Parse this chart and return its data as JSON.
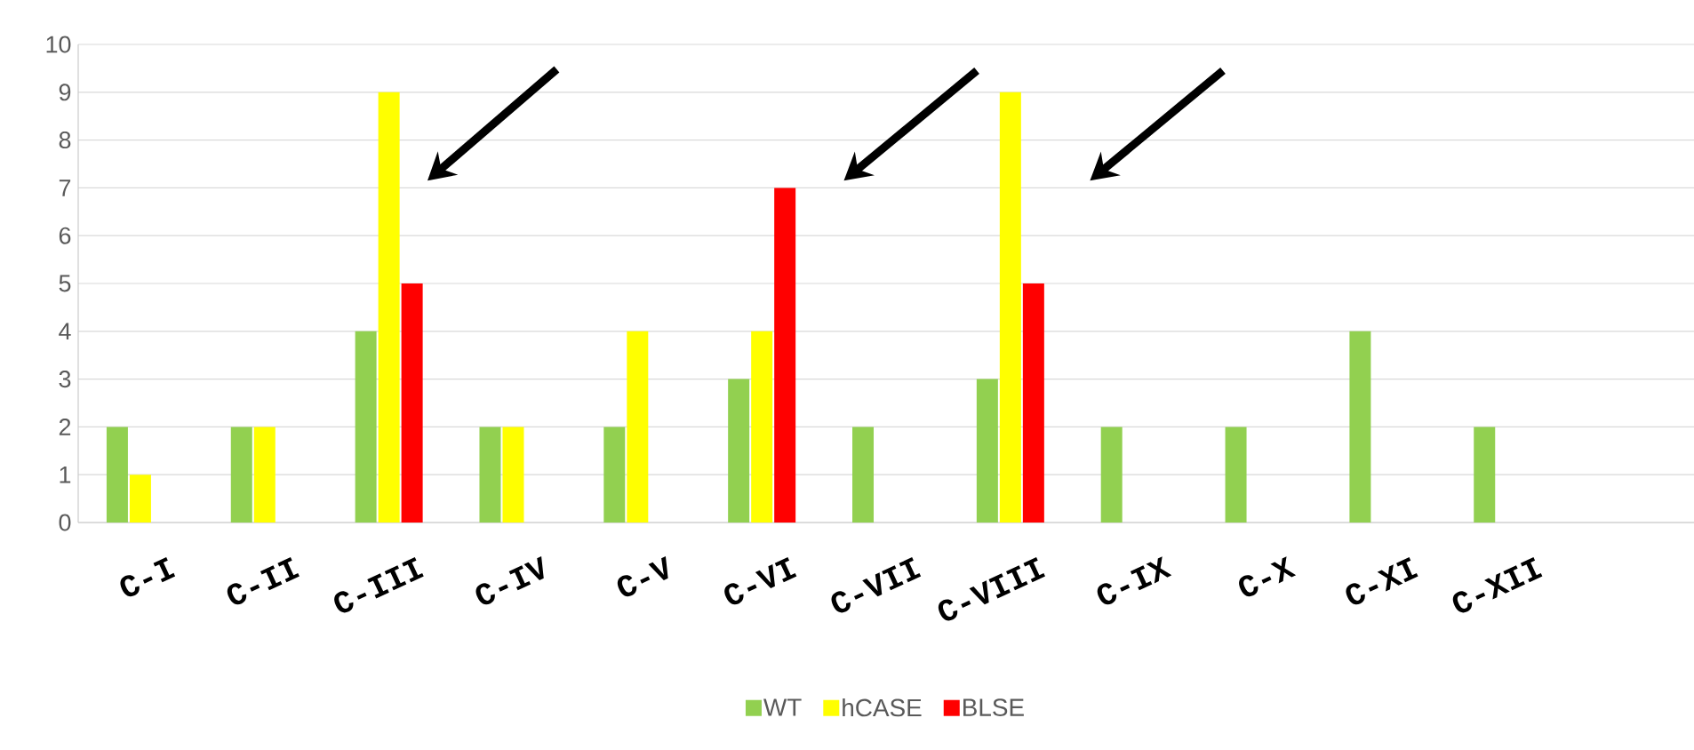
{
  "chart_data": {
    "type": "bar",
    "categories": [
      "C-I",
      "C-II",
      "C-III",
      "C-IV",
      "C-V",
      "C-VI",
      "C-VII",
      "C-VIII",
      "C-IX",
      "C-X",
      "C-XI",
      "C-XII",
      null
    ],
    "series": [
      {
        "name": "WT",
        "color": "#92d050",
        "values": [
          2,
          2,
          4,
          2,
          2,
          3,
          2,
          3,
          2,
          2,
          4,
          2,
          null
        ]
      },
      {
        "name": "hCASE",
        "color": "#ffff00",
        "values": [
          1,
          2,
          9,
          2,
          4,
          4,
          null,
          9,
          null,
          null,
          null,
          null,
          null
        ]
      },
      {
        "name": "BLSE",
        "color": "#ff0000",
        "values": [
          null,
          null,
          5,
          null,
          null,
          7,
          null,
          5,
          null,
          null,
          null,
          null,
          null
        ]
      }
    ],
    "ylim": [
      0,
      10
    ],
    "yticks": [
      0,
      1,
      2,
      3,
      4,
      5,
      6,
      7,
      8,
      9,
      10
    ],
    "grid": "y",
    "legend": "bottom"
  }
}
